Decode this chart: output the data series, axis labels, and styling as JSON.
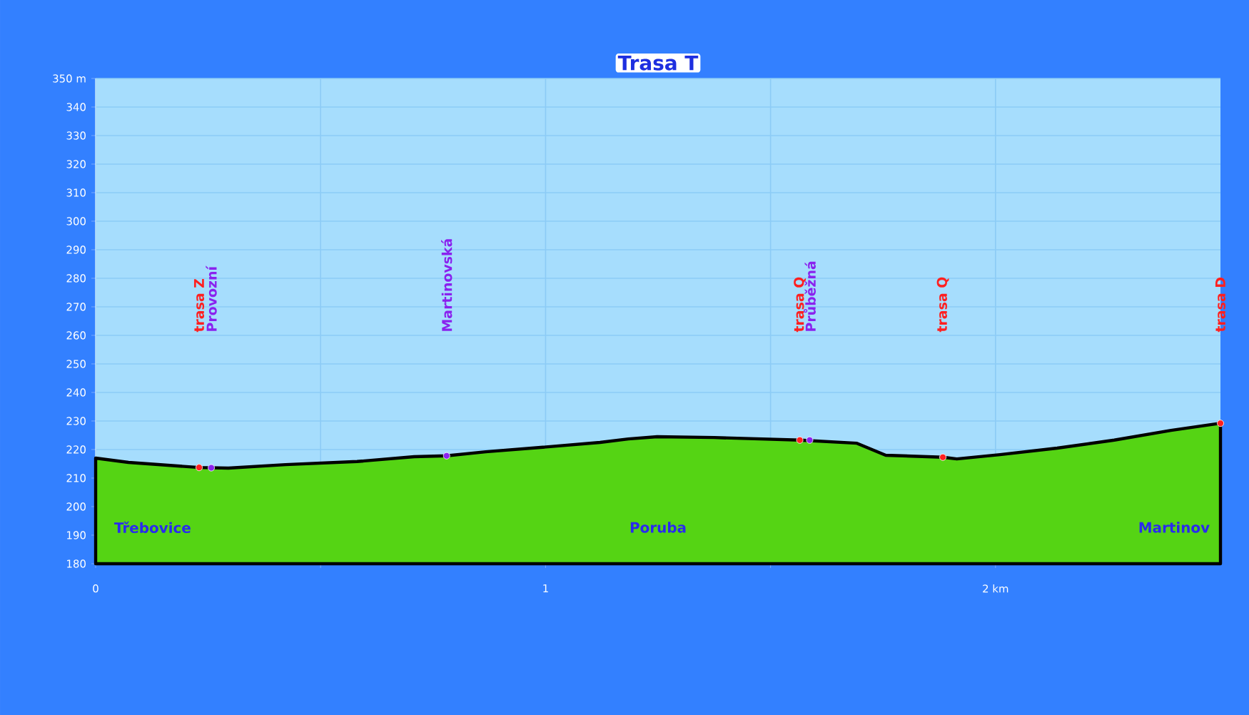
{
  "chart_data": {
    "type": "area",
    "title": "Trasa T",
    "x": [
      0,
      0.073,
      0.23,
      0.295,
      0.422,
      0.581,
      0.708,
      0.78,
      0.867,
      0.994,
      1.121,
      1.184,
      1.248,
      1.375,
      1.565,
      1.692,
      1.756,
      1.883,
      1.914,
      2.01,
      2.137,
      2.264,
      2.39,
      2.5
    ],
    "series": [
      {
        "color": "#55d414",
        "values": [
          217,
          215.5,
          213.7,
          213.5,
          214.7,
          215.8,
          217.5,
          217.8,
          219.2,
          220.8,
          222.5,
          223.7,
          224.5,
          224.2,
          223.3,
          222.2,
          218,
          217.3,
          216.7,
          218.2,
          220.5,
          223.3,
          226.7,
          229.2
        ]
      },
      {
        "type": "scatter",
        "marker": "circle",
        "color": "#ff2020",
        "x": [
          0.23
        ],
        "values": [
          213.7
        ]
      },
      {
        "type": "scatter",
        "marker": "circle",
        "color": "#8a22ee",
        "x": [
          0.257
        ],
        "values": [
          213.6
        ]
      },
      {
        "type": "scatter",
        "marker": "circle",
        "color": "#8a22ee",
        "x": [
          0.78
        ],
        "values": [
          217.8
        ]
      },
      {
        "type": "scatter",
        "marker": "circle",
        "color": "#ff2020",
        "x": [
          1.565
        ],
        "values": [
          223.3
        ]
      },
      {
        "type": "scatter",
        "marker": "circle",
        "color": "#8a22ee",
        "x": [
          1.587
        ],
        "values": [
          223.3
        ]
      },
      {
        "type": "scatter",
        "marker": "circle",
        "color": "#ff2020",
        "x": [
          1.883
        ],
        "values": [
          217.3
        ]
      },
      {
        "type": "scatter",
        "marker": "circle",
        "color": "#ff2020",
        "x": [
          2.5
        ],
        "values": [
          229.2
        ]
      }
    ],
    "xlim": [
      0,
      2.5
    ],
    "ylim": [
      180,
      350
    ],
    "xticks": [
      0,
      {
        "value": 0.5,
        "label": null
      },
      1,
      {
        "value": 1.5,
        "label": null
      },
      {
        "value": 2,
        "label": "2 km"
      }
    ],
    "yticks": [
      180,
      190,
      200,
      210,
      220,
      230,
      240,
      250,
      260,
      270,
      280,
      290,
      300,
      310,
      320,
      330,
      340,
      {
        "value": 350,
        "label": "350 m"
      }
    ],
    "grid": true,
    "annotations": [
      "trasa Z",
      "Provozní",
      "Martinovská",
      "trasa Q",
      "Průběžná",
      "trasa Q",
      "trasa D",
      "Třebovice",
      "Poruba",
      "Martinov"
    ]
  }
}
